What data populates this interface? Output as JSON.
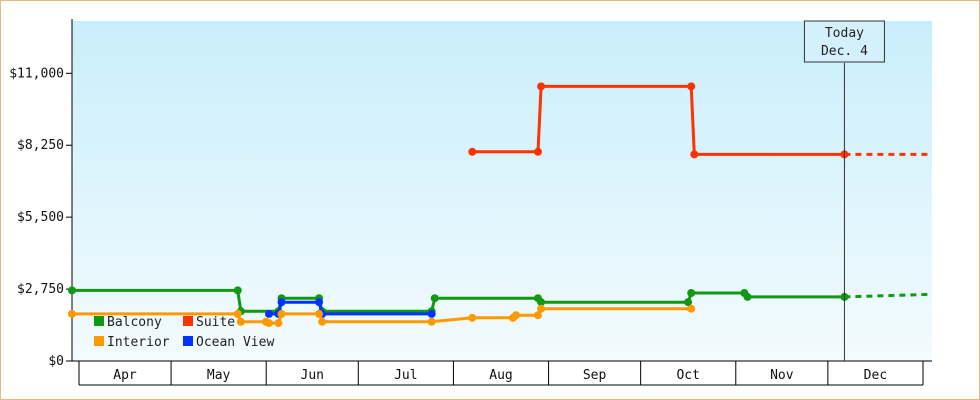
{
  "chart_data": {
    "type": "line",
    "title": "",
    "xlabel": "",
    "ylabel": "",
    "ylim": [
      0,
      13000
    ],
    "y_ticks": [
      0,
      2750,
      5500,
      8250,
      11000
    ],
    "y_tick_labels": [
      "$0",
      "$2,750",
      "$5,500",
      "$8,250",
      "$11,000"
    ],
    "x_months": [
      "Apr",
      "May",
      "Jun",
      "Jul",
      "Aug",
      "Sep",
      "Oct",
      "Nov",
      "Dec"
    ],
    "x_month_start_days": [
      0,
      30,
      61,
      91,
      122,
      153,
      183,
      214,
      244,
      275
    ],
    "xlim_days": [
      0,
      275
    ],
    "grid": false,
    "legend_placement": "bottom-left",
    "today_marker": {
      "line1": "Today",
      "line2": "Dec. 4",
      "day": 247
    },
    "series": [
      {
        "name": "Suite",
        "color": "#ff3300",
        "points": [
          [
            128,
            8000
          ],
          [
            149,
            8000
          ],
          [
            150,
            10500
          ],
          [
            198,
            10500
          ],
          [
            199,
            7900
          ],
          [
            247,
            7900
          ]
        ],
        "projection": [
          [
            247,
            7900
          ],
          [
            275,
            7900
          ]
        ]
      },
      {
        "name": "Balcony",
        "color": "#119911",
        "points": [
          [
            0,
            2700
          ],
          [
            53,
            2700
          ],
          [
            54,
            1900
          ],
          [
            66,
            1900
          ],
          [
            67,
            2400
          ],
          [
            79,
            2400
          ],
          [
            80,
            1900
          ],
          [
            115,
            1900
          ],
          [
            116,
            2400
          ],
          [
            149,
            2400
          ],
          [
            150,
            2250
          ],
          [
            197,
            2250
          ],
          [
            198,
            2600
          ],
          [
            215,
            2600
          ],
          [
            216,
            2450
          ],
          [
            247,
            2450
          ]
        ],
        "projection": [
          [
            247,
            2450
          ],
          [
            275,
            2550
          ]
        ]
      },
      {
        "name": "Ocean View",
        "color": "#0033ff",
        "points": [
          [
            63,
            1800
          ],
          [
            66,
            1800
          ],
          [
            67,
            2250
          ],
          [
            79,
            2250
          ],
          [
            80,
            1800
          ],
          [
            115,
            1800
          ]
        ],
        "projection": []
      },
      {
        "name": "Interior",
        "color": "#ff9900",
        "points": [
          [
            0,
            1800
          ],
          [
            53,
            1800
          ],
          [
            54,
            1500
          ],
          [
            62,
            1500
          ],
          [
            63,
            1450
          ],
          [
            66,
            1450
          ],
          [
            67,
            1800
          ],
          [
            79,
            1800
          ],
          [
            80,
            1500
          ],
          [
            115,
            1500
          ],
          [
            128,
            1650
          ],
          [
            141,
            1650
          ],
          [
            142,
            1750
          ],
          [
            149,
            1750
          ],
          [
            150,
            2000
          ],
          [
            198,
            2000
          ]
        ],
        "projection": []
      }
    ]
  },
  "legend": [
    {
      "name": "Balcony",
      "color": "#119911"
    },
    {
      "name": "Suite",
      "color": "#ff3300"
    },
    {
      "name": "Interior",
      "color": "#ff9900"
    },
    {
      "name": "Ocean View",
      "color": "#0033ff"
    }
  ]
}
